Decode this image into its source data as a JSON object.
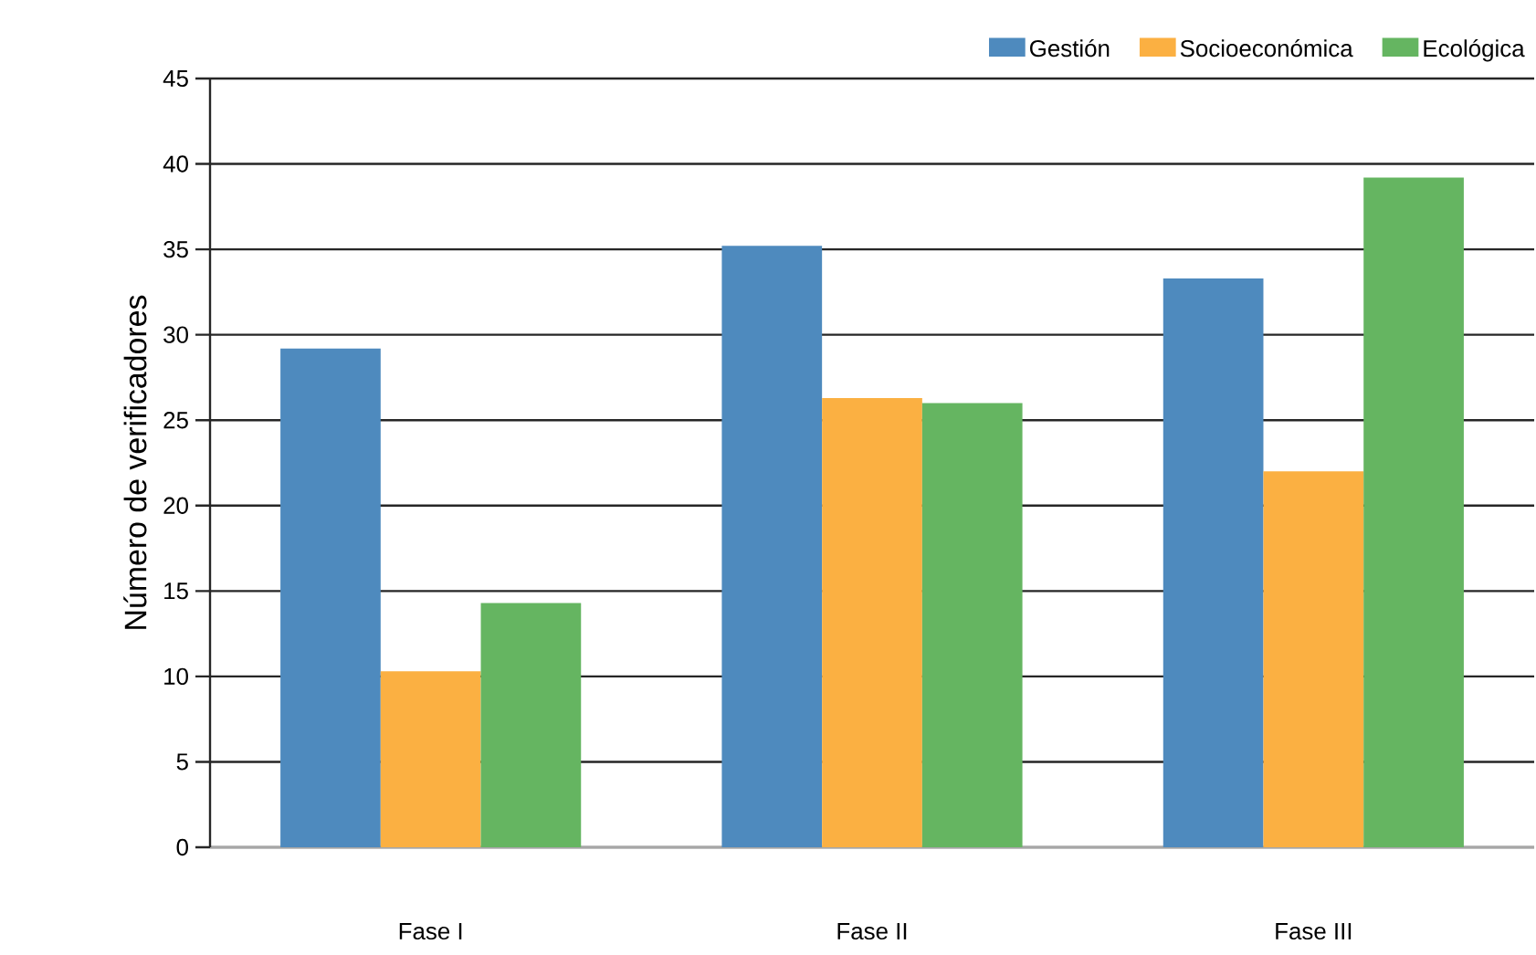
{
  "chart_data": {
    "type": "bar",
    "categories": [
      "Fase I",
      "Fase II",
      "Fase III"
    ],
    "ylabel": "Número de verificadores",
    "ylim": [
      0,
      45
    ],
    "yticks": [
      0,
      5,
      10,
      15,
      20,
      25,
      30,
      35,
      40,
      45
    ],
    "grid": "y",
    "legend": "top right",
    "series": [
      {
        "name": "Gestión",
        "color": "#4e8abe",
        "values": [
          29.2,
          35.2,
          33.3
        ]
      },
      {
        "name": "Socioeconómica",
        "color": "#fbb042",
        "values": [
          10.3,
          26.3,
          22.0
        ]
      },
      {
        "name": "Ecológica",
        "color": "#65b561",
        "values": [
          14.3,
          26.0,
          39.2
        ]
      }
    ]
  }
}
